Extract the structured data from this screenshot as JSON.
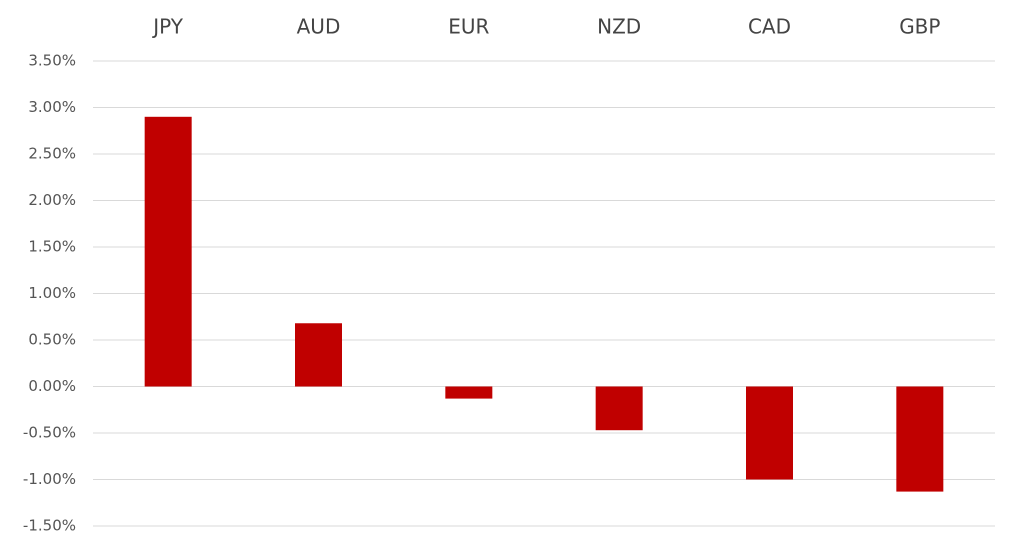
{
  "chart_data": {
    "type": "bar",
    "categories": [
      "JPY",
      "AUD",
      "EUR",
      "NZD",
      "CAD",
      "GBP"
    ],
    "values": [
      2.9,
      0.68,
      -0.13,
      -0.47,
      -1.0,
      -1.13
    ],
    "color": "#c00000",
    "ylim": [
      -1.5,
      3.5
    ],
    "yticks": [
      {
        "value": 3.5,
        "label": "3.50%"
      },
      {
        "value": 3.0,
        "label": "3.00%"
      },
      {
        "value": 2.5,
        "label": "2.50%"
      },
      {
        "value": 2.0,
        "label": "2.00%"
      },
      {
        "value": 1.5,
        "label": "1.50%"
      },
      {
        "value": 1.0,
        "label": "1.00%"
      },
      {
        "value": 0.5,
        "label": "0.50%"
      },
      {
        "value": 0.0,
        "label": "0.00%"
      },
      {
        "value": -0.5,
        "label": "-0.50%"
      },
      {
        "value": -1.0,
        "label": "-1.00%"
      },
      {
        "value": -1.5,
        "label": "-1.50%"
      }
    ],
    "grid": true
  }
}
